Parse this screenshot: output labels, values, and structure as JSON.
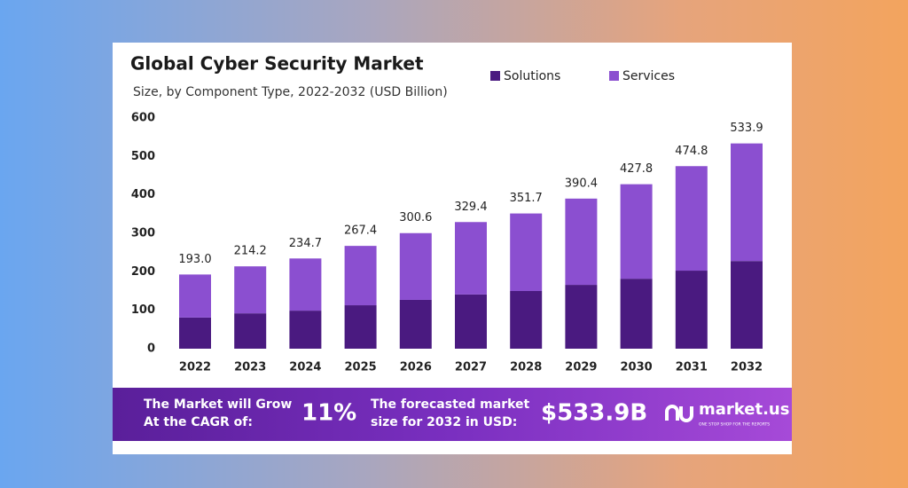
{
  "chart_data": {
    "type": "stacked_bar",
    "title": "Global Cyber Security Market",
    "subtitle": "Size, by Component Type, 2022-2032 (USD Billion)",
    "categories": [
      "2022",
      "2023",
      "2024",
      "2025",
      "2026",
      "2027",
      "2028",
      "2029",
      "2030",
      "2031",
      "2032"
    ],
    "series": [
      {
        "name": "Solutions",
        "color": "#4a1a80",
        "values": [
          81,
          92,
          99,
          113,
          127,
          141,
          150,
          166,
          182,
          203,
          228
        ]
      },
      {
        "name": "Services",
        "color": "#8b4fd0",
        "values": [
          112,
          122.2,
          135.7,
          154.4,
          173.6,
          188.4,
          201.7,
          224.4,
          245.8,
          271.8,
          305.9
        ]
      }
    ],
    "total_labels": [
      "193.0",
      "214.2",
      "234.7",
      "267.4",
      "300.6",
      "329.4",
      "351.7",
      "390.4",
      "427.8",
      "474.8",
      "533.9"
    ],
    "ylim": [
      0,
      600
    ],
    "yticks": [
      0,
      100,
      200,
      300,
      400,
      500,
      600
    ],
    "grid": false
  },
  "banner": {
    "cagr_text": [
      "The Market will Grow",
      "At the CAGR of:"
    ],
    "cagr_value": "11%",
    "forecast_text": [
      "The forecasted market",
      "size for 2032 in USD:"
    ],
    "forecast_value": "$533.9B",
    "brand": "market.us",
    "tagline": "ONE STOP SHOP FOR THE REPORTS"
  }
}
